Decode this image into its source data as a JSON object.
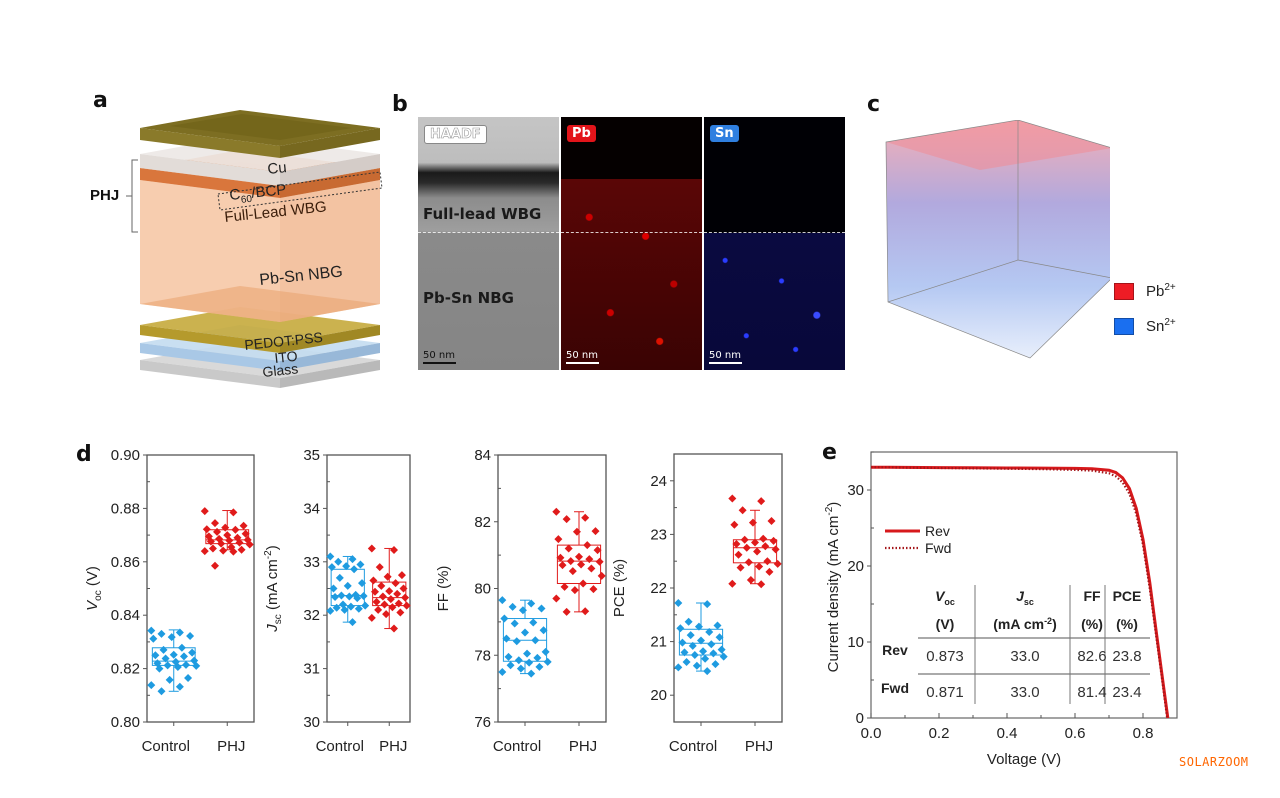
{
  "panels": {
    "a": {
      "label": "a",
      "phj_label": "PHJ",
      "layers": [
        {
          "name": "Cu",
          "color": "#8a7a2a"
        },
        {
          "name": "C60/BCP",
          "color": "#e2dcd8"
        },
        {
          "name": "Full-Lead WBG",
          "color": "#d9763c"
        },
        {
          "name": "Pb-Sn NBG",
          "color": "#f6c8a6"
        },
        {
          "name": "PEDOT:PSS",
          "color": "#b59a2c"
        },
        {
          "name": "ITO",
          "color": "#a9c8e6"
        },
        {
          "name": "Glass",
          "color": "#c9c9c9"
        }
      ],
      "text": {
        "cu": "Cu",
        "c60_main": "C",
        "c60_sub": "60",
        "c60_rest": "/BCP",
        "wbg": "Full-Lead WBG",
        "nbg": "Pb-Sn NBG",
        "pedot": "PEDOT:PSS",
        "ito": "ITO",
        "glass": "Glass"
      }
    },
    "b": {
      "label": "b",
      "images": [
        {
          "tag": "HAADF",
          "scalebar": "50 nm",
          "tag_color": "#ffffff"
        },
        {
          "tag": "Pb",
          "scalebar": "50 nm",
          "tag_color": "#e3141a"
        },
        {
          "tag": "Sn",
          "scalebar": "50 nm",
          "tag_color": "#2f7fe0"
        }
      ],
      "region_top": "Full-lead WBG",
      "region_bottom": "Pb-Sn NBG"
    },
    "c": {
      "label": "c",
      "legend": [
        {
          "ion": "Pb",
          "charge": "2+",
          "color": "#ee1c25"
        },
        {
          "ion": "Sn",
          "charge": "2+",
          "color": "#1a6ff0"
        }
      ]
    },
    "d": {
      "label": "d"
    },
    "e": {
      "label": "e"
    }
  },
  "watermark": "SOLARZOOM",
  "chart_data": [
    {
      "id": "voc",
      "type": "box",
      "ylabel_main": "V",
      "ylabel_sub": "oc",
      "ylabel_rest": " (V)",
      "categories": [
        "Control",
        "PHJ"
      ],
      "ylim": [
        0.8,
        0.9
      ],
      "yticks": [
        0.8,
        0.82,
        0.84,
        0.86,
        0.88,
        0.9
      ],
      "ytick_labels": [
        "0.80",
        "0.82",
        "0.84",
        "0.86",
        "0.88",
        "0.90"
      ],
      "series": [
        {
          "name": "Control",
          "color": "#1e9be0",
          "box": {
            "q1": 0.8212,
            "median": 0.8228,
            "q3": 0.8278,
            "min": 0.8115,
            "max": 0.8345
          },
          "points": [
            0.8342,
            0.8335,
            0.833,
            0.8322,
            0.8318,
            0.8312,
            0.8278,
            0.827,
            0.826,
            0.8252,
            0.825,
            0.8246,
            0.8238,
            0.823,
            0.8225,
            0.822,
            0.8214,
            0.8212,
            0.821,
            0.8206,
            0.82,
            0.8165,
            0.8158,
            0.8138,
            0.8132,
            0.8115
          ]
        },
        {
          "name": "PHJ",
          "color": "#e01b1b",
          "box": {
            "q1": 0.8668,
            "median": 0.8682,
            "q3": 0.872,
            "min": 0.8645,
            "max": 0.8792
          },
          "points": [
            0.879,
            0.8785,
            0.8745,
            0.8735,
            0.8728,
            0.8722,
            0.872,
            0.8712,
            0.8705,
            0.87,
            0.8695,
            0.869,
            0.8686,
            0.8682,
            0.868,
            0.8676,
            0.8672,
            0.8668,
            0.8665,
            0.8655,
            0.865,
            0.8645,
            0.8642,
            0.864,
            0.8638,
            0.8585
          ]
        }
      ]
    },
    {
      "id": "jsc",
      "type": "box",
      "ylabel_main": "J",
      "ylabel_sub": "sc",
      "ylabel_rest": " (mA cm",
      "ylabel_sup": "-2",
      "ylabel_end": ")",
      "categories": [
        "Control",
        "PHJ"
      ],
      "ylim": [
        30,
        35
      ],
      "yticks": [
        30,
        31,
        32,
        33,
        34,
        35
      ],
      "ytick_labels": [
        "30",
        "31",
        "32",
        "33",
        "34",
        "35"
      ],
      "series": [
        {
          "name": "Control",
          "color": "#1e9be0",
          "box": {
            "q1": 32.18,
            "median": 32.37,
            "q3": 32.86,
            "min": 31.87,
            "max": 33.1
          },
          "points": [
            33.1,
            33.05,
            33.0,
            32.95,
            32.92,
            32.9,
            32.86,
            32.7,
            32.6,
            32.55,
            32.5,
            32.38,
            32.37,
            32.36,
            32.35,
            32.34,
            32.32,
            32.2,
            32.18,
            32.16,
            32.14,
            32.12,
            32.1,
            32.08,
            31.87
          ]
        },
        {
          "name": "PHJ",
          "color": "#e01b1b",
          "box": {
            "q1": 32.18,
            "median": 32.33,
            "q3": 32.62,
            "min": 31.75,
            "max": 33.25
          },
          "points": [
            33.25,
            33.22,
            32.9,
            32.75,
            32.72,
            32.65,
            32.6,
            32.55,
            32.5,
            32.45,
            32.44,
            32.4,
            32.35,
            32.33,
            32.3,
            32.25,
            32.22,
            32.2,
            32.18,
            32.15,
            32.1,
            32.05,
            32.02,
            31.95,
            31.75
          ]
        }
      ]
    },
    {
      "id": "ff",
      "type": "box",
      "ylabel_main": "FF (%)",
      "categories": [
        "Control",
        "PHJ"
      ],
      "ylim": [
        76,
        84
      ],
      "yticks": [
        76,
        78,
        80,
        82,
        84
      ],
      "ytick_labels": [
        "76",
        "78",
        "80",
        "82",
        "84"
      ],
      "series": [
        {
          "name": "Control",
          "color": "#1e9be0",
          "box": {
            "q1": 77.82,
            "median": 78.45,
            "q3": 79.1,
            "min": 77.45,
            "max": 79.65
          },
          "points": [
            79.65,
            79.55,
            79.45,
            79.4,
            79.35,
            79.1,
            78.98,
            78.95,
            78.75,
            78.68,
            78.5,
            78.45,
            78.42,
            78.1,
            78.05,
            77.95,
            77.92,
            77.85,
            77.8,
            77.78,
            77.7,
            77.65,
            77.6,
            77.5,
            77.45
          ]
        },
        {
          "name": "PHJ",
          "color": "#e01b1b",
          "box": {
            "q1": 80.15,
            "median": 80.82,
            "q3": 81.3,
            "min": 79.3,
            "max": 82.3
          },
          "points": [
            82.3,
            82.12,
            82.08,
            81.72,
            81.7,
            81.48,
            81.3,
            81.2,
            81.15,
            80.95,
            80.92,
            80.88,
            80.82,
            80.8,
            80.72,
            80.7,
            80.6,
            80.52,
            80.38,
            80.15,
            80.05,
            79.98,
            79.95,
            79.7,
            79.32,
            79.3
          ]
        }
      ]
    },
    {
      "id": "pce",
      "type": "box",
      "ylabel_main": "PCE (%)",
      "categories": [
        "Control",
        "PHJ"
      ],
      "ylim": [
        19.5,
        24.5
      ],
      "yticks": [
        20,
        21,
        22,
        23,
        24
      ],
      "ytick_labels": [
        "20",
        "21",
        "22",
        "23",
        "24"
      ],
      "series": [
        {
          "name": "Control",
          "color": "#1e9be0",
          "box": {
            "q1": 20.75,
            "median": 20.97,
            "q3": 21.23,
            "min": 20.45,
            "max": 21.72
          },
          "points": [
            21.72,
            21.7,
            21.37,
            21.3,
            21.28,
            21.25,
            21.18,
            21.12,
            21.08,
            21.02,
            20.98,
            20.95,
            20.92,
            20.85,
            20.82,
            20.8,
            20.78,
            20.75,
            20.72,
            20.68,
            20.62,
            20.58,
            20.55,
            20.52,
            20.45
          ]
        },
        {
          "name": "PHJ",
          "color": "#e01b1b",
          "box": {
            "q1": 22.47,
            "median": 22.75,
            "q3": 22.9,
            "min": 22.08,
            "max": 23.45
          },
          "points": [
            23.67,
            23.62,
            23.45,
            23.25,
            23.22,
            23.18,
            22.92,
            22.9,
            22.88,
            22.85,
            22.82,
            22.78,
            22.75,
            22.72,
            22.68,
            22.62,
            22.5,
            22.48,
            22.45,
            22.4,
            22.38,
            22.3,
            22.15,
            22.08,
            22.07
          ]
        }
      ]
    },
    {
      "id": "jv",
      "type": "line",
      "xlabel": "Voltage (V)",
      "ylabel": "Current density (mA cm",
      "ylabel_sup": "-2",
      "ylabel_end": ")",
      "xlim": [
        0,
        0.9
      ],
      "ylim": [
        0,
        35
      ],
      "xticks": [
        0.0,
        0.2,
        0.4,
        0.6,
        0.8
      ],
      "xtick_labels": [
        "0.0",
        "0.2",
        "0.4",
        "0.6",
        "0.8"
      ],
      "yticks": [
        0,
        10,
        20,
        30
      ],
      "ytick_labels": [
        "0",
        "10",
        "20",
        "30"
      ],
      "legend": [
        {
          "name": "Rev",
          "style": "solid",
          "color": "#d7191c"
        },
        {
          "name": "Fwd",
          "style": "dotted",
          "color": "#a4161a"
        }
      ],
      "series": [
        {
          "name": "Rev",
          "voc": 0.873,
          "jsc": 33.0,
          "x": [
            0.0,
            0.1,
            0.2,
            0.3,
            0.4,
            0.5,
            0.6,
            0.65,
            0.7,
            0.72,
            0.74,
            0.76,
            0.78,
            0.8,
            0.82,
            0.84,
            0.86,
            0.873
          ],
          "y": [
            33.0,
            32.98,
            32.95,
            32.92,
            32.9,
            32.88,
            32.85,
            32.8,
            32.6,
            32.3,
            31.6,
            30.2,
            27.6,
            23.5,
            17.8,
            11.0,
            4.3,
            0.0
          ]
        },
        {
          "name": "Fwd",
          "voc": 0.871,
          "jsc": 33.0,
          "x": [
            0.0,
            0.1,
            0.2,
            0.3,
            0.4,
            0.5,
            0.6,
            0.65,
            0.7,
            0.72,
            0.74,
            0.76,
            0.78,
            0.8,
            0.82,
            0.84,
            0.86,
            0.871
          ],
          "y": [
            33.0,
            32.95,
            32.9,
            32.85,
            32.8,
            32.75,
            32.65,
            32.55,
            32.2,
            31.8,
            31.0,
            29.5,
            26.9,
            22.8,
            17.0,
            10.4,
            3.8,
            0.0
          ]
        }
      ],
      "table": {
        "headers": [
          {
            "main": "V",
            "sub": "oc",
            "unit": "(V)",
            "italic": true
          },
          {
            "main": "J",
            "sub": "sc",
            "unit": "(mA cm",
            "unit_sup": "-2",
            "unit_end": ")",
            "italic": true
          },
          {
            "main": "FF",
            "unit": "(%)"
          },
          {
            "main": "PCE",
            "unit": "(%)"
          }
        ],
        "rows": [
          {
            "label": "Rev",
            "values": [
              "0.873",
              "33.0",
              "82.6",
              "23.8"
            ]
          },
          {
            "label": "Fwd",
            "values": [
              "0.871",
              "33.0",
              "81.4",
              "23.4"
            ]
          }
        ]
      }
    }
  ]
}
